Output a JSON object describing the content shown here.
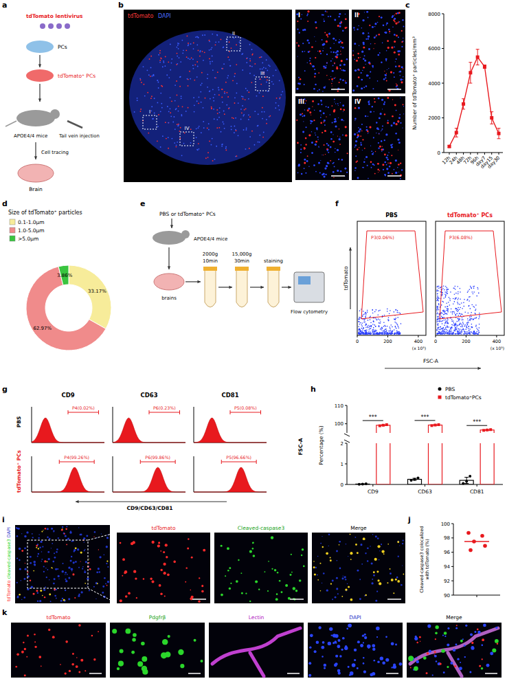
{
  "figure": {
    "panel_letters": [
      "a",
      "b",
      "c",
      "d",
      "e",
      "f",
      "g",
      "h",
      "i",
      "j",
      "k"
    ],
    "a": {
      "labels": [
        "tdTomato lentivirus",
        "PCs",
        "tdTomato⁺ PCs",
        "APOE4/4 mice",
        "Tail vein injection",
        "Cell tracing",
        "Brain"
      ]
    },
    "b": {
      "channels": [
        "tdTomato",
        "DAPI"
      ],
      "insets": [
        "I",
        "II",
        "III",
        "IV"
      ]
    },
    "e": {
      "labels": [
        "PBS or tdTomato⁺ PCs",
        "APOE4/4 mice",
        "brains",
        "2000g",
        "10min",
        "15,000g",
        "30min",
        "staining",
        "Flow cytometry"
      ]
    },
    "f": {
      "titles": [
        "PBS",
        "tdTomato⁺ PCs"
      ],
      "gates": [
        "P3(0.06%)",
        "P3(6.08%)"
      ],
      "y_label": "tdTomato",
      "x_label": "FSC-A",
      "xlim": [
        0,
        450
      ],
      "xticks": [
        0,
        200,
        400
      ],
      "x_unit": "(x 10³)"
    },
    "g": {
      "columns": [
        "CD9",
        "CD63",
        "CD81"
      ],
      "rows": [
        "PBS",
        "tdTomato⁺ PCs"
      ],
      "gates": [
        [
          "P4(0.02%)",
          "P6(0.23%)",
          "P5(0.08%)"
        ],
        [
          "P4(99.26%)",
          "P6(99.86%)",
          "P5(96.66%)"
        ]
      ],
      "x_label": "CD9/CD63/CD81",
      "y_label": "FSC-A"
    },
    "i": {
      "side_labels": [
        "tdTomato",
        "cleaved-caspase3",
        "DAPI"
      ],
      "titles": [
        "tdTomato",
        "Cleaved-caspase3",
        "Merge"
      ]
    },
    "k": {
      "titles": [
        "tdTomato",
        "Pdgfrβ",
        "Lectin",
        "DAPI",
        "Merge"
      ]
    }
  },
  "chart_data": [
    {
      "type": "line",
      "y_label": "Number of tdTomato⁺ particles/mm³",
      "categories": [
        "12h",
        "24h",
        "48h",
        "72h",
        "96h",
        "day7",
        "day15",
        "day30"
      ],
      "values": [
        350,
        1150,
        2800,
        4600,
        5500,
        4950,
        2000,
        1100
      ],
      "errors": [
        50,
        250,
        300,
        600,
        450,
        100,
        350,
        300
      ],
      "ylim": [
        0,
        8000
      ],
      "yticks": [
        0,
        2000,
        4000,
        6000,
        8000
      ],
      "color": "#e8191e",
      "marker": "square"
    },
    {
      "type": "pie",
      "title": "Size of tdTomato⁺ particles",
      "categories": [
        "0.1-1.0μm",
        "1.0-5.0μm",
        ">5.0μm"
      ],
      "values": [
        33.17,
        62.97,
        3.86
      ],
      "value_labels": [
        "33.17%",
        "62.97%",
        "3.86%"
      ],
      "colors": [
        "#f7ec9a",
        "#f08b8b",
        "#39c43f"
      ],
      "data_labels": true
    },
    {
      "type": "bar",
      "y_label": "Percentage (%)",
      "categories": [
        "CD9",
        "CD63",
        "CD81"
      ],
      "ylim": [
        0,
        110
      ],
      "break": [
        2,
        95
      ],
      "yticks": [
        0,
        1,
        2,
        100,
        110
      ],
      "legend": "top-right",
      "annotations": [
        "***",
        "***",
        "***"
      ],
      "series": [
        {
          "name": "PBS",
          "color": "#000000",
          "marker": "circle",
          "values": [
            0.02,
            0.25,
            0.2
          ],
          "errors": [
            0.01,
            0.05,
            0.15
          ],
          "points": [
            [
              0.01,
              0.02,
              0.03
            ],
            [
              0.2,
              0.25,
              0.32
            ],
            [
              0.05,
              0.15,
              0.4
            ]
          ]
        },
        {
          "name": "tdTomato⁺PCs",
          "color": "#e8191e",
          "marker": "square",
          "values": [
            99.2,
            99.3,
            96.6
          ],
          "errors": [
            0.3,
            0.25,
            0.2
          ],
          "points": [
            [
              98.9,
              99.2,
              99.5
            ],
            [
              99.0,
              99.3,
              99.5
            ],
            [
              96.4,
              96.6,
              96.8
            ]
          ]
        }
      ]
    },
    {
      "type": "scatter",
      "y_label": "Cleaved-caspase3 colocalized with tdTomato (%)",
      "values": [
        98.7,
        98.3,
        97.5,
        96.9,
        96.3
      ],
      "mean": 97.5,
      "ylim": [
        90,
        100
      ],
      "yticks": [
        90,
        92,
        94,
        96,
        98,
        100
      ],
      "color": "#e8191e",
      "marker": "circle",
      "tick_labels": "y"
    }
  ]
}
